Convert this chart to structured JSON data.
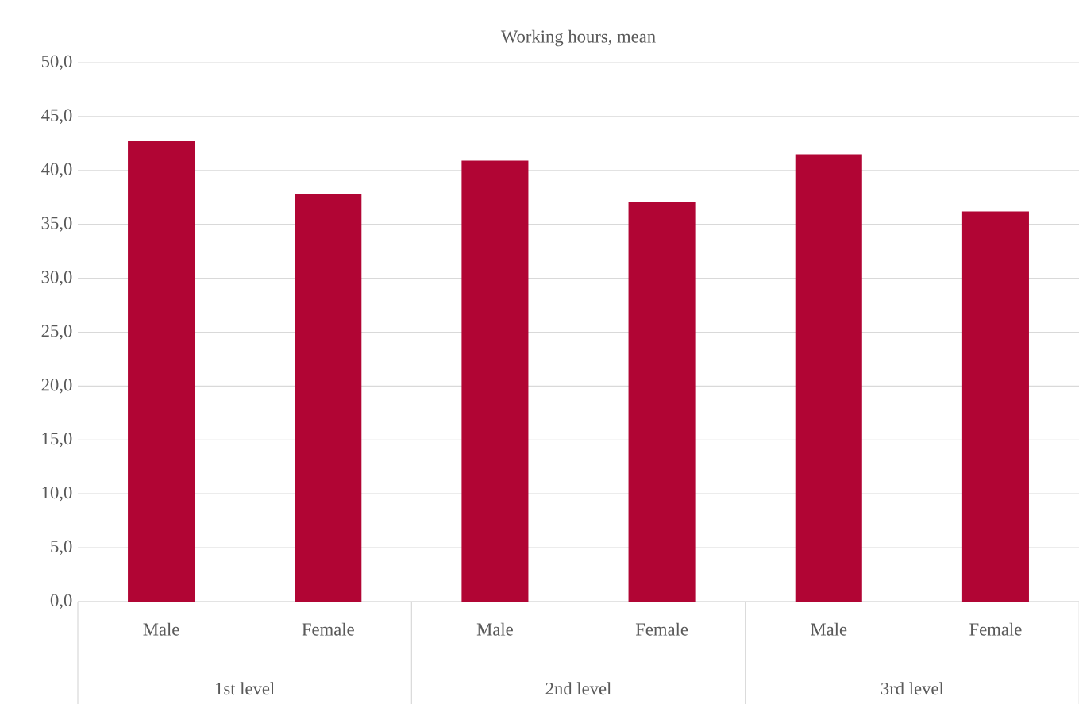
{
  "chart_data": {
    "type": "bar",
    "title": "Working hours, mean",
    "categories": [
      "Male",
      "Female",
      "Male",
      "Female",
      "Male",
      "Female"
    ],
    "values": [
      42.7,
      37.8,
      40.9,
      37.1,
      41.5,
      36.2
    ],
    "color": "#b10534",
    "ylim": [
      0,
      50
    ],
    "yticks": [
      {
        "value": 0,
        "label": "0,0"
      },
      {
        "value": 5,
        "label": "5,0"
      },
      {
        "value": 10,
        "label": "10,0"
      },
      {
        "value": 15,
        "label": "15,0"
      },
      {
        "value": 20,
        "label": "20,0"
      },
      {
        "value": 25,
        "label": "25,0"
      },
      {
        "value": 30,
        "label": "30,0"
      },
      {
        "value": 35,
        "label": "35,0"
      },
      {
        "value": 40,
        "label": "40,0"
      },
      {
        "value": 45,
        "label": "45,0"
      },
      {
        "value": 50,
        "label": "50,0"
      }
    ],
    "grid": "y",
    "annotations": [
      "1st level",
      "2nd level",
      "3rd level"
    ]
  }
}
